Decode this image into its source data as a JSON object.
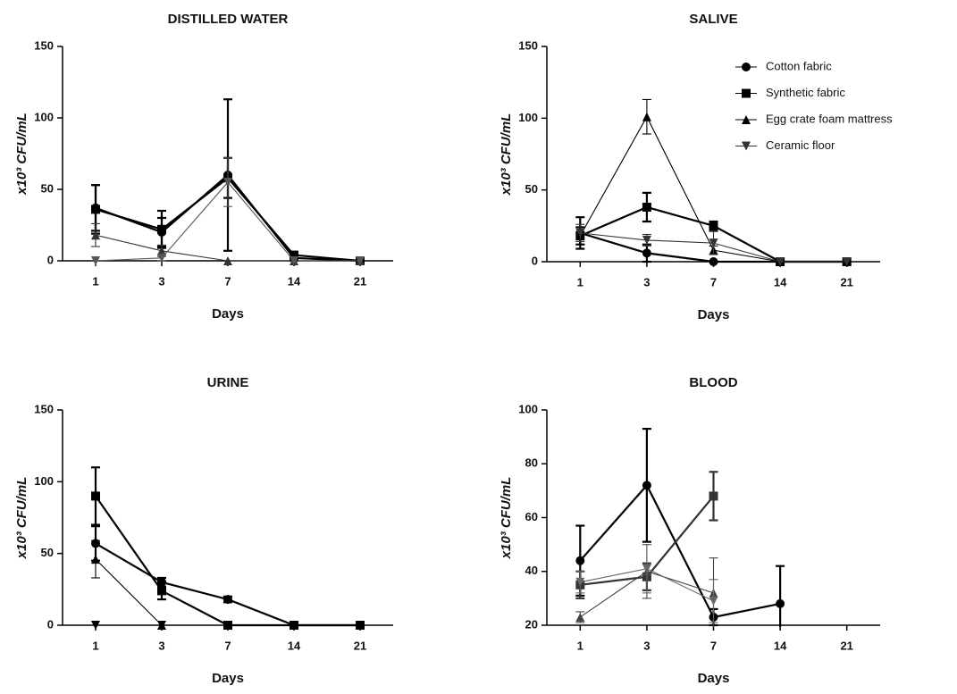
{
  "chart_data": [
    {
      "type": "line",
      "title": "DISTILLED WATER",
      "xlabel": "Days",
      "ylabel": "x10³ CFU/mL",
      "categories": [
        "1",
        "3",
        "7",
        "14",
        "21"
      ],
      "ylim": [
        0,
        150
      ],
      "yticks": [
        0,
        50,
        100,
        150
      ],
      "series": [
        {
          "marker": "circle",
          "color": "#000000",
          "values": [
            37,
            20,
            60,
            2,
            0
          ],
          "errors": [
            16,
            10,
            53,
            2,
            0
          ]
        },
        {
          "marker": "square",
          "color": "#000000",
          "values": [
            36,
            22,
            58,
            4,
            0
          ],
          "errors": [
            17,
            13,
            14,
            2,
            0
          ]
        },
        {
          "marker": "triangle",
          "color": "#333333",
          "values": [
            18,
            7,
            0,
            0,
            0
          ],
          "errors": [
            8,
            4,
            0,
            0,
            0
          ]
        },
        {
          "marker": "triangle-down",
          "color": "#555555",
          "values": [
            0,
            2,
            55,
            0,
            0
          ],
          "errors": [
            0,
            2,
            17,
            0,
            0
          ]
        }
      ]
    },
    {
      "type": "line",
      "title": "SALIVE",
      "xlabel": "Days",
      "ylabel": "x10³ CFU/mL",
      "categories": [
        "1",
        "3",
        "7",
        "14",
        "21"
      ],
      "ylim": [
        0,
        150
      ],
      "yticks": [
        0,
        50,
        100,
        150
      ],
      "legend": "top-right",
      "series": [
        {
          "name": "Cotton fabric",
          "marker": "circle",
          "color": "#000000",
          "values": [
            20,
            6,
            0,
            0,
            0
          ],
          "errors": [
            11,
            6,
            0,
            0,
            0
          ]
        },
        {
          "name": "Synthetic fabric",
          "marker": "square",
          "color": "#000000",
          "values": [
            18,
            38,
            25,
            0,
            0
          ],
          "errors": [
            6,
            10,
            3,
            0,
            0
          ]
        },
        {
          "name": "Egg crate foam mattress",
          "marker": "triangle",
          "color": "#000000",
          "values": [
            18,
            101,
            8,
            0,
            0
          ],
          "errors": [
            6,
            12,
            3,
            0,
            0
          ]
        },
        {
          "name": "Ceramic floor",
          "marker": "triangle-down",
          "color": "#333333",
          "values": [
            20,
            15,
            13,
            0,
            0
          ],
          "errors": [
            6,
            4,
            8,
            0,
            0
          ]
        }
      ]
    },
    {
      "type": "line",
      "title": "URINE",
      "xlabel": "Days",
      "ylabel": "x10³ CFU/mL",
      "categories": [
        "1",
        "3",
        "7",
        "14",
        "21"
      ],
      "ylim": [
        0,
        150
      ],
      "yticks": [
        0,
        50,
        100,
        150
      ],
      "series": [
        {
          "marker": "circle",
          "color": "#000000",
          "values": [
            57,
            30,
            18,
            0,
            0
          ],
          "errors": [
            12,
            3,
            2,
            0,
            0
          ]
        },
        {
          "marker": "square",
          "color": "#000000",
          "values": [
            90,
            24,
            0,
            0,
            0
          ],
          "errors": [
            20,
            6,
            0,
            0,
            0
          ]
        },
        {
          "marker": "triangle",
          "color": "#000000",
          "values": [
            46,
            0,
            0,
            0,
            0
          ],
          "errors": [
            13,
            0,
            0,
            0,
            0
          ]
        },
        {
          "marker": "triangle-down",
          "color": "#000000",
          "values": [
            0,
            0,
            0,
            0,
            0
          ],
          "errors": [
            0,
            0,
            0,
            0,
            0
          ]
        }
      ]
    },
    {
      "type": "line",
      "title": "BLOOD",
      "xlabel": "Days",
      "ylabel": "x10³ CFU/mL",
      "categories": [
        "1",
        "3",
        "7",
        "14",
        "21"
      ],
      "ylim": [
        20,
        100
      ],
      "yticks": [
        20,
        40,
        60,
        80,
        100
      ],
      "series": [
        {
          "marker": "circle",
          "color": "#000000",
          "values": [
            44,
            72,
            23,
            28,
            null
          ],
          "errors": [
            13,
            21,
            3,
            14,
            null
          ]
        },
        {
          "marker": "square",
          "color": "#333333",
          "values": [
            35,
            38,
            68,
            null,
            null
          ],
          "errors": [
            5,
            5,
            9,
            null,
            null
          ]
        },
        {
          "marker": "triangle",
          "color": "#444444",
          "values": [
            23,
            40,
            32,
            null,
            null
          ],
          "errors": [
            2,
            10,
            13,
            null,
            null
          ]
        },
        {
          "marker": "triangle-down",
          "color": "#666666",
          "values": [
            36,
            41,
            29,
            null,
            null
          ],
          "errors": [
            4,
            9,
            8,
            null,
            null
          ]
        }
      ]
    }
  ]
}
